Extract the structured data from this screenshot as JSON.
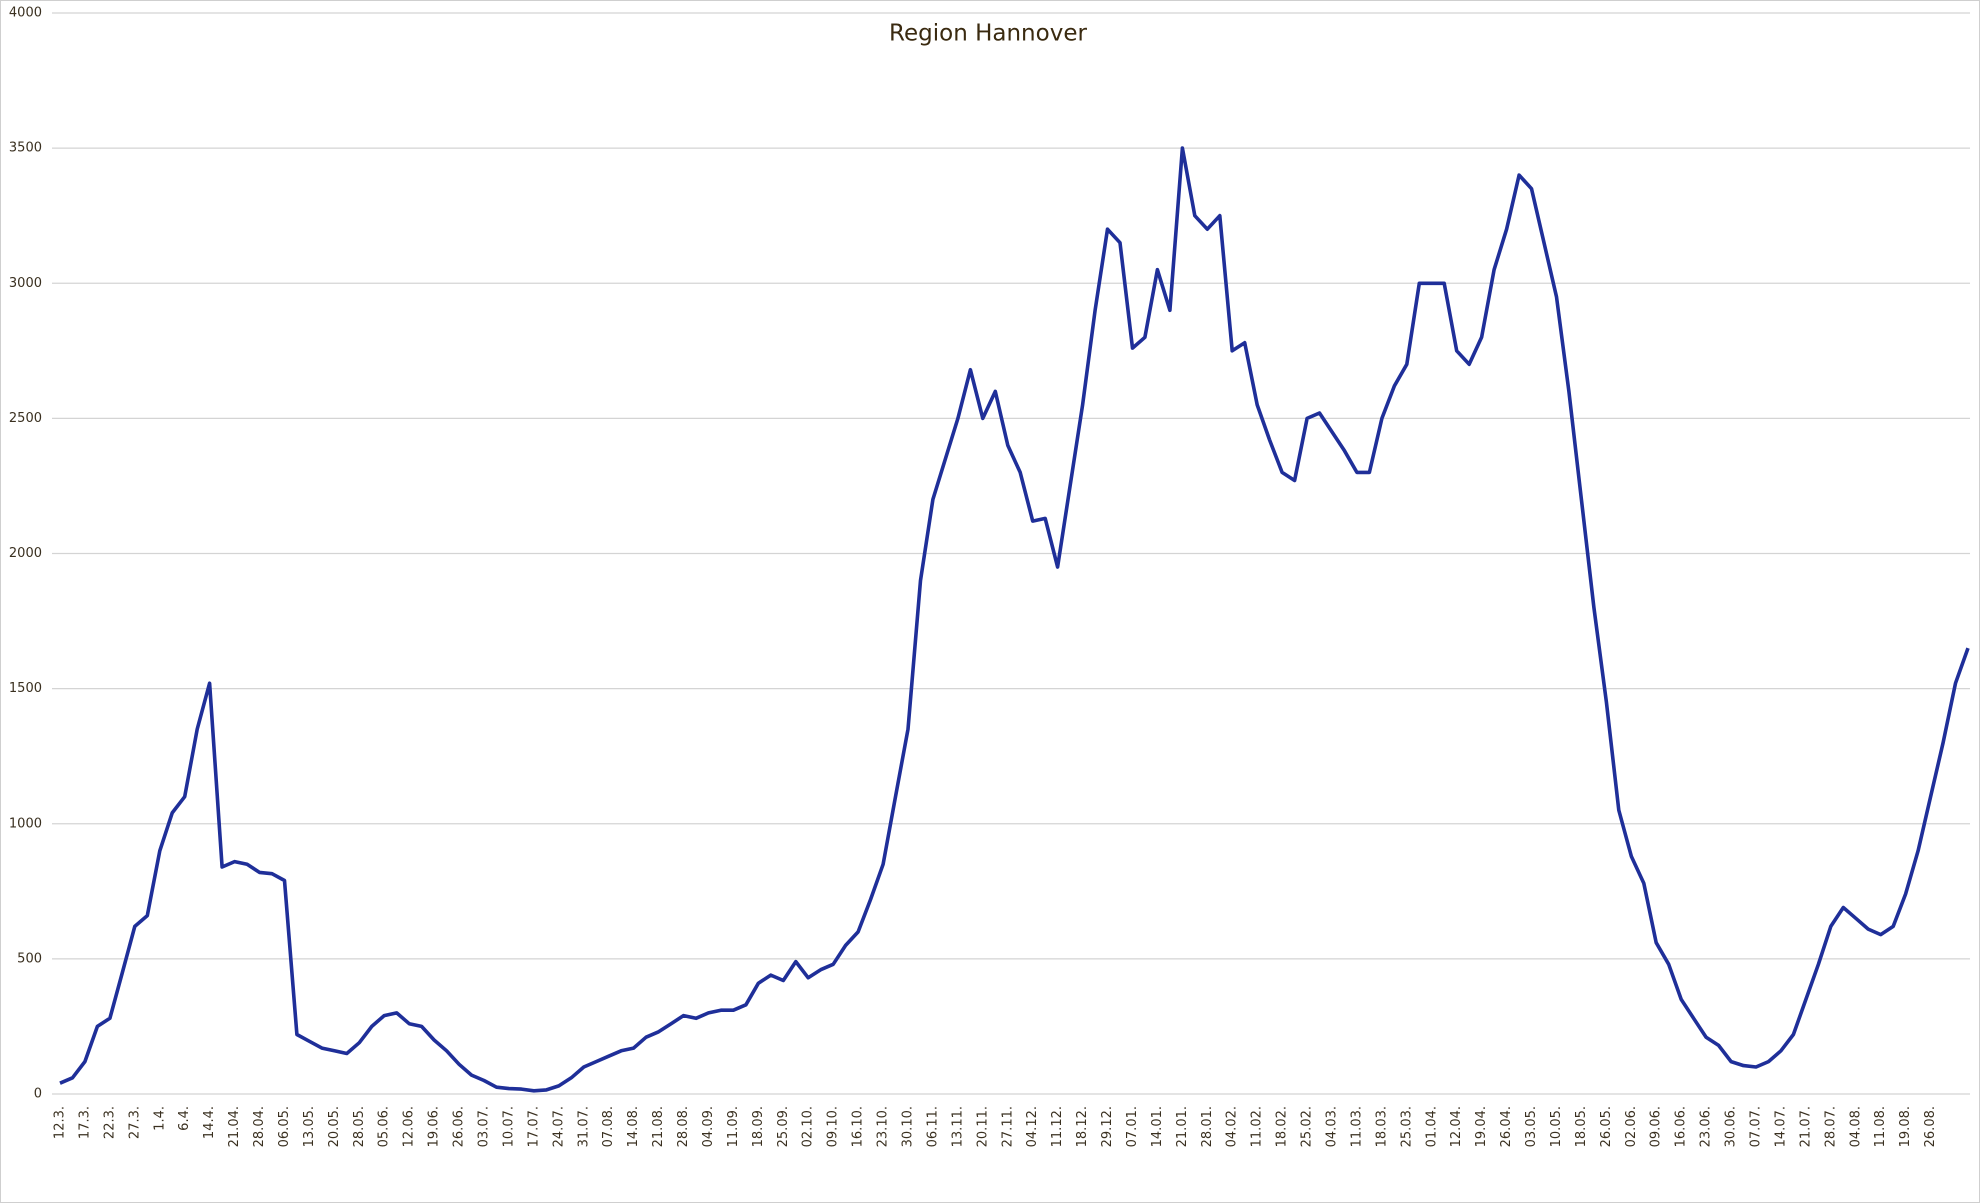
{
  "chart_data": {
    "type": "line",
    "title": "Region Hannover",
    "categories": [
      "12.3.",
      null,
      "17.3.",
      null,
      "22.3.",
      null,
      "27.3.",
      null,
      "1.4.",
      null,
      "6.4.",
      null,
      "14.4.",
      null,
      "21.04.",
      null,
      "28.04.",
      null,
      "06.05.",
      null,
      "13.05.",
      null,
      "20.05.",
      null,
      "28.05.",
      null,
      "05.06.",
      null,
      "12.06.",
      null,
      "19.06.",
      null,
      "26.06.",
      null,
      "03.07.",
      null,
      "10.07.",
      null,
      "17.07.",
      null,
      "24.07.",
      null,
      "31.07.",
      null,
      "07.08.",
      null,
      "14.08.",
      null,
      "21.08.",
      null,
      "28.08.",
      null,
      "04.09.",
      null,
      "11.09.",
      null,
      "18.09.",
      null,
      "25.09.",
      null,
      "02.10.",
      null,
      "09.10.",
      null,
      "16.10.",
      null,
      "23.10.",
      null,
      "30.10.",
      null,
      "06.11.",
      null,
      "13.11.",
      null,
      "20.11.",
      null,
      "27.11.",
      null,
      "04.12.",
      null,
      "11.12.",
      null,
      "18.12.",
      null,
      "29.12.",
      null,
      "07.01.",
      null,
      "14.01.",
      null,
      "21.01.",
      null,
      "28.01.",
      null,
      "04.02.",
      null,
      "11.02.",
      null,
      "18.02.",
      null,
      "25.02.",
      null,
      "04.03.",
      null,
      "11.03.",
      null,
      "18.03.",
      null,
      "25.03.",
      null,
      "01.04.",
      null,
      "12.04.",
      null,
      "19.04.",
      null,
      "26.04.",
      null,
      "03.05.",
      null,
      "10.05.",
      null,
      "18.05.",
      null,
      "26.05.",
      null,
      "02.06.",
      null,
      "09.06.",
      null,
      "16.06.",
      null,
      "23.06.",
      null,
      "30.06.",
      null,
      "07.07.",
      null,
      "14.07.",
      null,
      "21.07.",
      null,
      "28.07.",
      null,
      "04.08.",
      null,
      "11.08.",
      null,
      "19.08.",
      null,
      "26.08.",
      null,
      null,
      null
    ],
    "series": [
      {
        "name": "Region Hannover",
        "color": "#1f2f99",
        "values": [
          40,
          60,
          120,
          250,
          280,
          450,
          620,
          660,
          900,
          1040,
          1100,
          1350,
          1520,
          840,
          860,
          850,
          820,
          815,
          790,
          220,
          195,
          170,
          160,
          150,
          190,
          250,
          290,
          300,
          260,
          250,
          200,
          160,
          110,
          70,
          50,
          25,
          20,
          18,
          12,
          15,
          30,
          60,
          100,
          120,
          140,
          160,
          170,
          210,
          230,
          260,
          290,
          280,
          300,
          310,
          310,
          330,
          410,
          440,
          420,
          490,
          430,
          460,
          480,
          550,
          600,
          720,
          850,
          1100,
          1350,
          1900,
          2200,
          2350,
          2500,
          2680,
          2500,
          2600,
          2400,
          2300,
          2120,
          2130,
          1950,
          2250,
          2550,
          2900,
          3200,
          3150,
          2760,
          2800,
          3050,
          2900,
          3500,
          3250,
          3200,
          3250,
          2750,
          2780,
          2550,
          2420,
          2300,
          2270,
          2500,
          2520,
          2450,
          2380,
          2300,
          2300,
          2500,
          2620,
          2700,
          3000,
          3000,
          3000,
          2750,
          2700,
          2800,
          3050,
          3200,
          3400,
          3350,
          3150,
          2950,
          2600,
          2200,
          1800,
          1450,
          1050,
          880,
          780,
          560,
          480,
          350,
          280,
          210,
          180,
          120,
          105,
          100,
          120,
          160,
          220,
          350,
          480,
          620,
          690,
          650,
          610,
          590,
          620,
          740,
          900,
          1100,
          1300,
          1520,
          1650
        ]
      }
    ],
    "ylim": [
      0,
      4000
    ],
    "yticks": [
      0,
      500,
      1000,
      1500,
      2000,
      2500,
      3000,
      3500,
      4000
    ],
    "grid": true
  }
}
